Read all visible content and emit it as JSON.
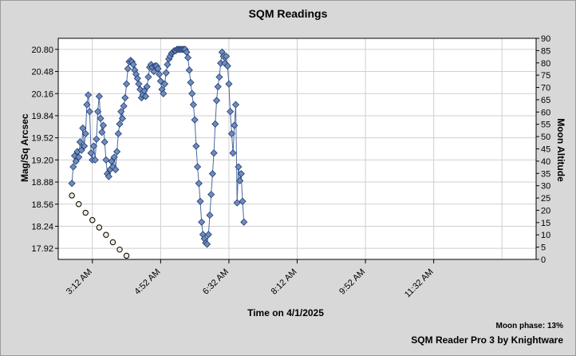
{
  "chart_data": {
    "type": "scatter",
    "title": "SQM Readings",
    "xlabel": "Time on 4/1/2025",
    "ylabel": "Mag/Sq Arcsec",
    "y2label": "Moon Altitude",
    "x_ticks": [
      "3:12 AM",
      "4:52 AM",
      "6:32 AM",
      "8:12 AM",
      "9:52 AM",
      "11:32 AM"
    ],
    "y_ticks": [
      "17.92",
      "18.24",
      "18.56",
      "18.88",
      "19.20",
      "19.52",
      "19.84",
      "20.16",
      "20.48",
      "20.80"
    ],
    "y2_ticks": [
      "0",
      "5",
      "10",
      "15",
      "20",
      "25",
      "30",
      "35",
      "40",
      "45",
      "50",
      "55",
      "60",
      "65",
      "70",
      "75",
      "80",
      "85",
      "90"
    ],
    "ylim": [
      17.76,
      20.96
    ],
    "y2lim": [
      0,
      90
    ],
    "xlim": [
      "2:22 AM",
      "2:02 PM"
    ],
    "grid": true,
    "series": [
      {
        "marker": "diamond",
        "color": "#4a6aa5",
        "points": [
          [
            "2:42 AM",
            18.86
          ],
          [
            "2:44 AM",
            19.1
          ],
          [
            "2:46 AM",
            19.26
          ],
          [
            "2:48 AM",
            19.18
          ],
          [
            "2:50 AM",
            19.32
          ],
          [
            "2:52 AM",
            19.24
          ],
          [
            "2:54 AM",
            19.46
          ],
          [
            "2:56 AM",
            19.34
          ],
          [
            "2:58 AM",
            19.66
          ],
          [
            "3:00 AM",
            19.4
          ],
          [
            "3:02 AM",
            19.58
          ],
          [
            "3:04 AM",
            20.0
          ],
          [
            "3:06 AM",
            20.14
          ],
          [
            "3:08 AM",
            19.9
          ],
          [
            "3:10 AM",
            19.3
          ],
          [
            "3:12 AM",
            19.2
          ],
          [
            "3:14 AM",
            19.4
          ],
          [
            "3:16 AM",
            19.2
          ],
          [
            "3:18 AM",
            19.5
          ],
          [
            "3:20 AM",
            19.9
          ],
          [
            "3:22 AM",
            20.12
          ],
          [
            "3:24 AM",
            19.8
          ],
          [
            "3:26 AM",
            19.6
          ],
          [
            "3:28 AM",
            19.7
          ],
          [
            "3:30 AM",
            19.46
          ],
          [
            "3:32 AM",
            19.2
          ],
          [
            "3:34 AM",
            19.0
          ],
          [
            "3:36 AM",
            18.96
          ],
          [
            "3:38 AM",
            19.06
          ],
          [
            "3:40 AM",
            19.18
          ],
          [
            "3:42 AM",
            19.1
          ],
          [
            "3:44 AM",
            19.24
          ],
          [
            "3:46 AM",
            19.06
          ],
          [
            "3:48 AM",
            19.32
          ],
          [
            "3:50 AM",
            19.58
          ],
          [
            "3:52 AM",
            19.72
          ],
          [
            "3:54 AM",
            19.9
          ],
          [
            "3:56 AM",
            19.8
          ],
          [
            "3:58 AM",
            19.98
          ],
          [
            "4:00 AM",
            20.1
          ],
          [
            "4:02 AM",
            20.3
          ],
          [
            "4:04 AM",
            20.52
          ],
          [
            "4:06 AM",
            20.62
          ],
          [
            "4:08 AM",
            20.64
          ],
          [
            "4:10 AM",
            20.62
          ],
          [
            "4:12 AM",
            20.58
          ],
          [
            "4:14 AM",
            20.5
          ],
          [
            "4:16 AM",
            20.44
          ],
          [
            "4:18 AM",
            20.38
          ],
          [
            "4:20 AM",
            20.3
          ],
          [
            "4:22 AM",
            20.22
          ],
          [
            "4:24 AM",
            20.1
          ],
          [
            "4:26 AM",
            20.14
          ],
          [
            "4:28 AM",
            20.2
          ],
          [
            "4:30 AM",
            20.12
          ],
          [
            "4:32 AM",
            20.26
          ],
          [
            "4:34 AM",
            20.4
          ],
          [
            "4:36 AM",
            20.54
          ],
          [
            "4:38 AM",
            20.58
          ],
          [
            "4:40 AM",
            20.54
          ],
          [
            "4:42 AM",
            20.48
          ],
          [
            "4:44 AM",
            20.56
          ],
          [
            "4:46 AM",
            20.56
          ],
          [
            "4:48 AM",
            20.52
          ],
          [
            "4:50 AM",
            20.44
          ],
          [
            "4:52 AM",
            20.34
          ],
          [
            "4:54 AM",
            20.22
          ],
          [
            "4:56 AM",
            20.16
          ],
          [
            "4:58 AM",
            20.3
          ],
          [
            "5:00 AM",
            20.46
          ],
          [
            "5:02 AM",
            20.58
          ],
          [
            "5:04 AM",
            20.66
          ],
          [
            "5:06 AM",
            20.7
          ],
          [
            "5:08 AM",
            20.74
          ],
          [
            "5:10 AM",
            20.76
          ],
          [
            "5:12 AM",
            20.78
          ],
          [
            "5:14 AM",
            20.78
          ],
          [
            "5:16 AM",
            20.8
          ],
          [
            "5:18 AM",
            20.8
          ],
          [
            "5:20 AM",
            20.8
          ],
          [
            "5:22 AM",
            20.8
          ],
          [
            "5:24 AM",
            20.8
          ],
          [
            "5:26 AM",
            20.8
          ],
          [
            "5:28 AM",
            20.8
          ],
          [
            "5:30 AM",
            20.76
          ],
          [
            "5:32 AM",
            20.68
          ],
          [
            "5:34 AM",
            20.5
          ],
          [
            "5:36 AM",
            20.32
          ],
          [
            "5:38 AM",
            20.16
          ],
          [
            "5:40 AM",
            20.0
          ],
          [
            "5:42 AM",
            19.78
          ],
          [
            "5:44 AM",
            19.4
          ],
          [
            "5:46 AM",
            19.1
          ],
          [
            "5:48 AM",
            18.86
          ],
          [
            "5:50 AM",
            18.6
          ],
          [
            "5:52 AM",
            18.3
          ],
          [
            "5:54 AM",
            18.12
          ],
          [
            "5:56 AM",
            18.06
          ],
          [
            "5:58 AM",
            18.0
          ],
          [
            "6:00 AM",
            17.98
          ],
          [
            "6:02 AM",
            18.12
          ],
          [
            "6:04 AM",
            18.4
          ],
          [
            "6:06 AM",
            18.7
          ],
          [
            "6:08 AM",
            19.0
          ],
          [
            "6:10 AM",
            19.3
          ],
          [
            "6:12 AM",
            19.72
          ],
          [
            "6:14 AM",
            20.06
          ],
          [
            "6:16 AM",
            20.26
          ],
          [
            "6:18 AM",
            20.4
          ],
          [
            "6:20 AM",
            20.6
          ],
          [
            "6:22 AM",
            20.76
          ],
          [
            "6:24 AM",
            20.7
          ],
          [
            "6:26 AM",
            20.6
          ],
          [
            "6:28 AM",
            20.7
          ],
          [
            "6:30 AM",
            20.56
          ],
          [
            "6:32 AM",
            20.3
          ],
          [
            "6:34 AM",
            19.9
          ],
          [
            "6:36 AM",
            19.58
          ],
          [
            "6:38 AM",
            19.3
          ],
          [
            "6:40 AM",
            19.7
          ],
          [
            "6:42 AM",
            20.0
          ],
          [
            "6:44 AM",
            18.58
          ],
          [
            "6:46 AM",
            19.1
          ],
          [
            "6:48 AM",
            18.9
          ],
          [
            "6:50 AM",
            19.0
          ],
          [
            "6:52 AM",
            18.6
          ],
          [
            "6:54 AM",
            18.3
          ]
        ]
      },
      {
        "marker": "circle",
        "color": "#f2ead8",
        "axis": "right",
        "points": [
          [
            "2:42 AM",
            26.0
          ],
          [
            "2:52 AM",
            22.5
          ],
          [
            "3:02 AM",
            19.0
          ],
          [
            "3:12 AM",
            16.0
          ],
          [
            "3:22 AM",
            13.0
          ],
          [
            "3:32 AM",
            10.0
          ],
          [
            "3:42 AM",
            7.0
          ],
          [
            "3:52 AM",
            4.0
          ],
          [
            "4:02 AM",
            1.5
          ]
        ]
      }
    ]
  },
  "footer": {
    "moon_phase": "Moon phase: 13%",
    "credit": "SQM Reader Pro 3 by Knightware"
  }
}
